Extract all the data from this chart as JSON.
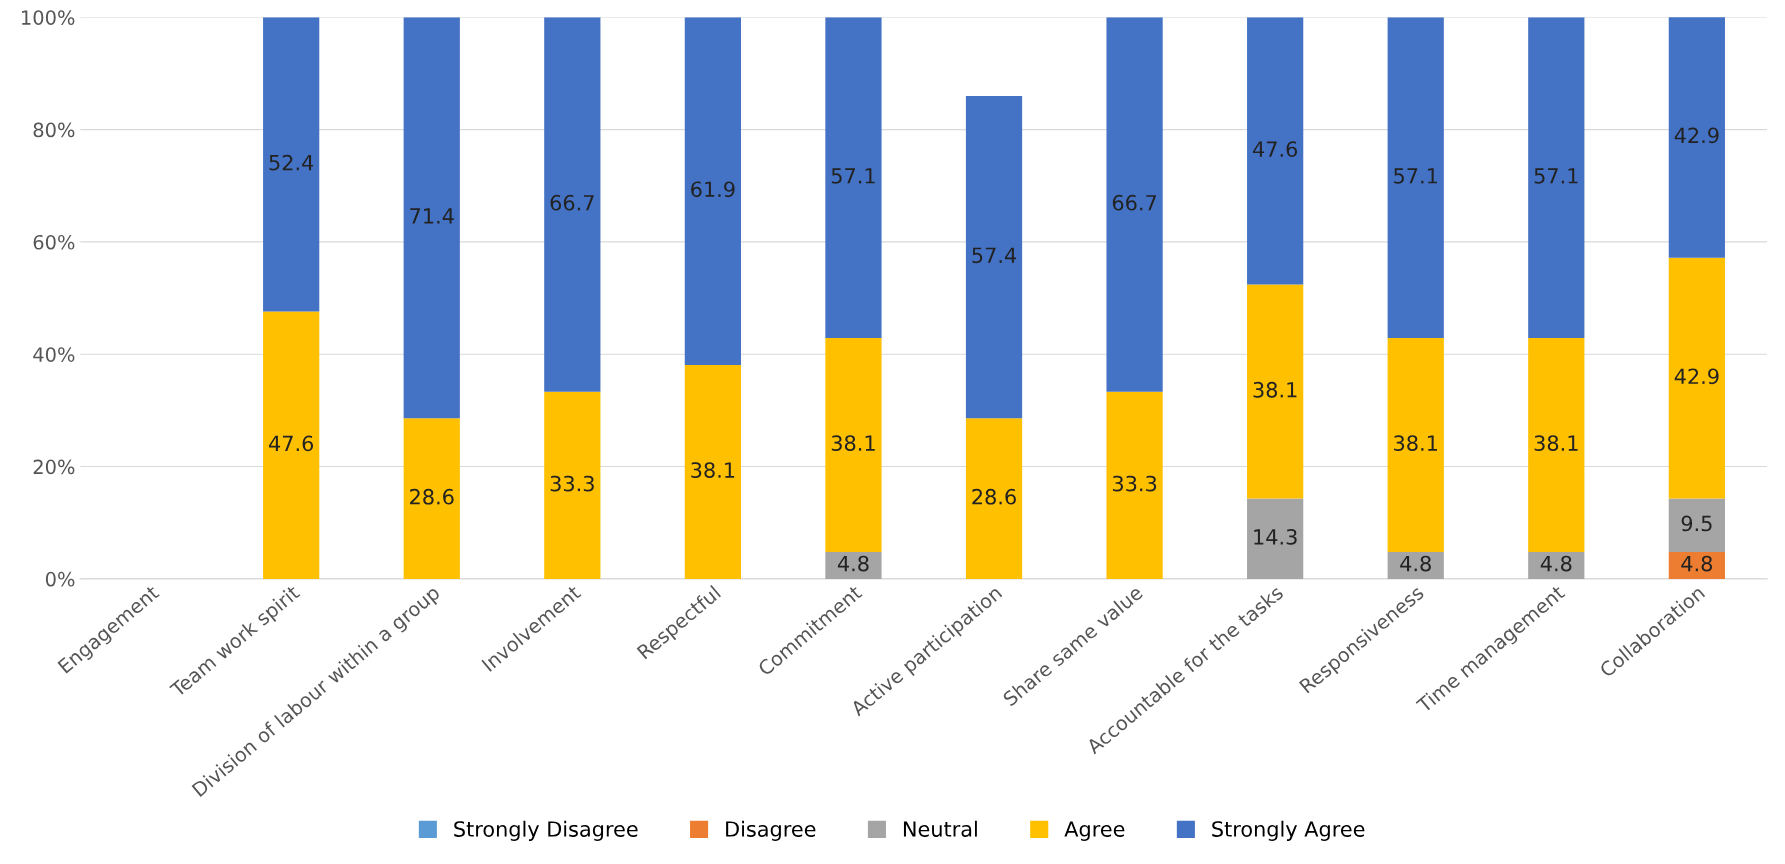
{
  "chart_data": {
    "type": "bar",
    "stacked": true,
    "categories": [
      "Engagement",
      "Team work spirit",
      "Division of labour within a group",
      "Involvement",
      "Respectful",
      "Commitment",
      "Active participation",
      "Share same value",
      "Accountable for the tasks",
      "Responsiveness",
      "Time management",
      "Collaboration"
    ],
    "series": [
      {
        "name": "Strongly Disagree",
        "color": "#5b9bd5",
        "values": [
          null,
          null,
          null,
          null,
          null,
          null,
          null,
          null,
          null,
          null,
          null,
          null
        ],
        "value_labels": [
          null,
          null,
          null,
          null,
          null,
          null,
          null,
          null,
          null,
          null,
          null,
          null
        ]
      },
      {
        "name": "Disagree",
        "color": "#ed7d31",
        "values": [
          null,
          null,
          null,
          null,
          null,
          null,
          null,
          null,
          null,
          null,
          null,
          4.8
        ],
        "value_labels": [
          null,
          null,
          null,
          null,
          null,
          null,
          null,
          null,
          null,
          null,
          null,
          "4.8"
        ]
      },
      {
        "name": "Neutral",
        "color": "#a5a5a5",
        "values": [
          null,
          null,
          null,
          null,
          null,
          4.8,
          null,
          null,
          14.3,
          4.8,
          4.8,
          9.5
        ],
        "value_labels": [
          null,
          null,
          null,
          null,
          null,
          "4.8",
          null,
          null,
          "14.3",
          "4.8",
          "4.8",
          "9.5"
        ]
      },
      {
        "name": "Agree",
        "color": "#ffc000",
        "values": [
          null,
          47.6,
          28.6,
          33.3,
          38.1,
          38.1,
          28.6,
          33.3,
          38.1,
          38.1,
          38.1,
          42.9
        ],
        "value_labels": [
          null,
          "47.6",
          "28.6",
          "33.3",
          "38.1",
          "38.1",
          "28.6",
          "33.3",
          "38.1",
          "38.1",
          "38.1",
          "42.9"
        ]
      },
      {
        "name": "Strongly Agree",
        "color": "#4472c4",
        "values": [
          null,
          52.4,
          71.4,
          66.7,
          61.9,
          57.1,
          57.4,
          66.7,
          47.6,
          57.1,
          57.1,
          42.9
        ],
        "value_labels": [
          null,
          "52.4",
          "71.4",
          "66.7",
          "61.9",
          "57.1",
          "57.4",
          "66.7",
          "47.6",
          "57.1",
          "57.1",
          "42.9"
        ]
      }
    ],
    "ylim": [
      0,
      100
    ],
    "yticks": [
      {
        "value": 0,
        "label": "0%"
      },
      {
        "value": 20,
        "label": "20%"
      },
      {
        "value": 40,
        "label": "40%"
      },
      {
        "value": 60,
        "label": "60%"
      },
      {
        "value": 80,
        "label": "80%"
      },
      {
        "value": 100,
        "label": "100%"
      }
    ],
    "grid": "y",
    "legend": "bottom"
  }
}
